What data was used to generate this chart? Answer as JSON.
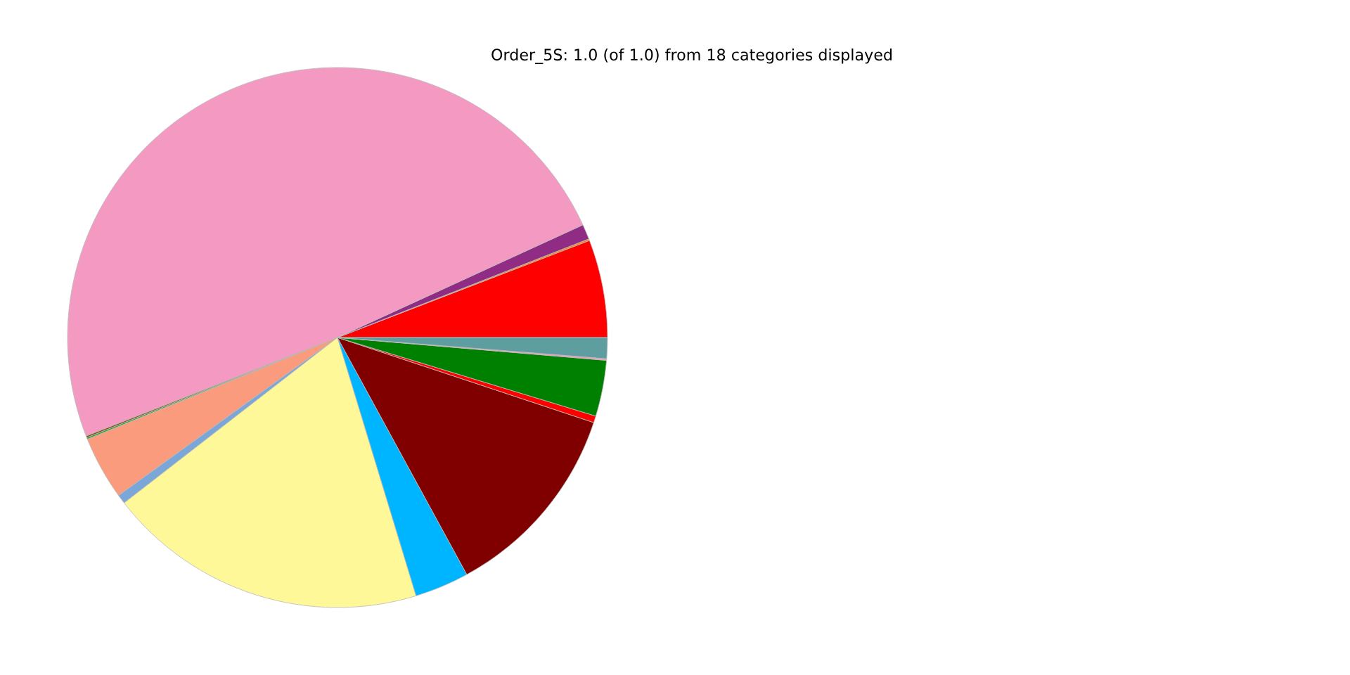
{
  "chart_data": {
    "type": "pie",
    "title": "Order_5S: 1.0 (of 1.0) from 18 categories displayed",
    "categories": [
      null,
      null,
      null,
      null,
      null,
      null,
      null,
      null,
      null,
      null,
      null,
      null,
      null,
      null,
      null
    ],
    "values": [
      5.85,
      0.1,
      0.9,
      49.1,
      0.1,
      0.1,
      3.8,
      0.55,
      19.2,
      3.25,
      11.95,
      0.4,
      3.35,
      0.1,
      1.25
    ],
    "colors": [
      "#ff0000",
      "#ff7f0e",
      "#912c84",
      "#f49ac2",
      "#8b4513",
      "#2ca02c",
      "#f99b7c",
      "#7aa6d8",
      "#fff899",
      "#00b5ff",
      "#800000",
      "#ff0000",
      "#008000",
      "#f49ac2",
      "#5f9ea0"
    ]
  }
}
